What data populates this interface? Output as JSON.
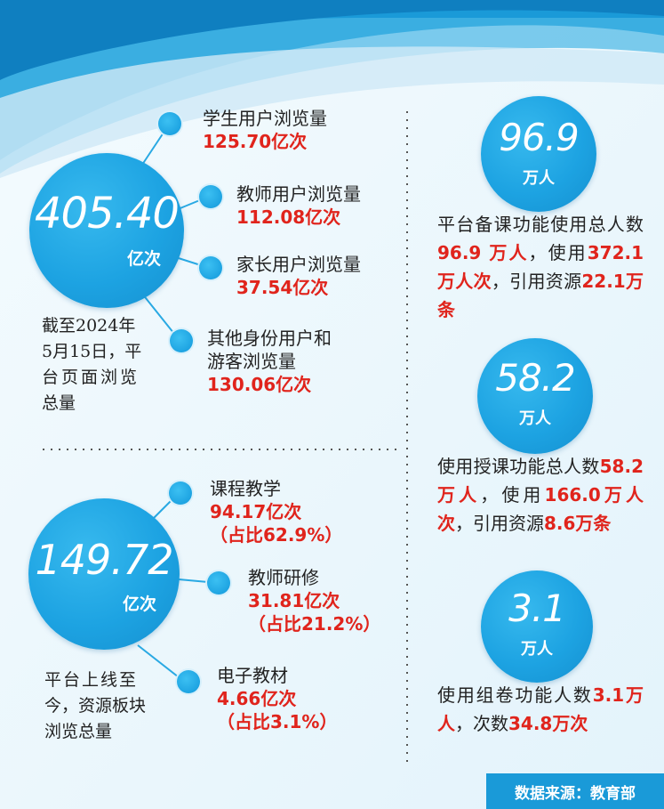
{
  "total_views": {
    "number": "405.40",
    "unit": "亿次",
    "caption_lines": [
      "截至2024年",
      "5月15日，平",
      "台页面浏览",
      "总量"
    ],
    "items": [
      {
        "label": "学生用户浏览量",
        "value": "125.70亿次"
      },
      {
        "label": "教师用户浏览量",
        "value": "112.08亿次"
      },
      {
        "label": "家长用户浏览量",
        "value": "37.54亿次"
      },
      {
        "label_lines": [
          "其他身份用户和",
          "游客浏览量"
        ],
        "value": "130.06亿次"
      }
    ]
  },
  "resource_views": {
    "number": "149.72",
    "unit": "亿次",
    "caption_lines": [
      "平台上线至",
      "今，资源板块",
      "浏览总量"
    ],
    "items": [
      {
        "label": "课程教学",
        "value": "94.17亿次",
        "share": "（占比62.9%）"
      },
      {
        "label": "教师研修",
        "value": "31.81亿次",
        "share": "（占比21.2%）"
      },
      {
        "label": "电子教材",
        "value": "4.66亿次",
        "share": "（占比3.1%）"
      }
    ]
  },
  "prep": {
    "number": "96.9",
    "unit": "万人",
    "desc": {
      "t1": "平台备课功能使用总人数 ",
      "v1": "96.9 万人",
      "t2": "，使用",
      "v2": "372.1万人次",
      "t3": "，引用资源",
      "v3": "22.1万条"
    }
  },
  "teaching": {
    "number": "58.2",
    "unit": "万人",
    "desc": {
      "t1": "使用授课功能总人数",
      "v1": "58.2万人",
      "t2": "，使用",
      "v2": "166.0万人次",
      "t3": "，引用资源",
      "v3": "8.6万条"
    }
  },
  "volume": {
    "number": "3.1",
    "unit": "万人",
    "desc": {
      "t1": "使用组卷功能人数",
      "v1": "3.1万人",
      "t2": "，次数",
      "v2": "34.8万次"
    }
  },
  "source": "数据来源：教育部",
  "colors": {
    "accent_blue": "#1da3e2",
    "value_red": "#e0241c",
    "banner_blue": "#1a9ad8"
  }
}
